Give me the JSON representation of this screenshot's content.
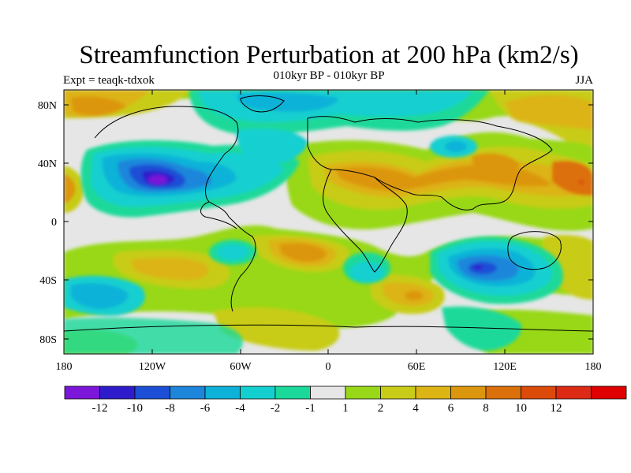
{
  "title": "Streamfunction Perturbation at 200 hPa (km2/s)",
  "subtitle": "010kyr BP - 010kyr BP",
  "left_label": "Expt = teaqk-tdxok",
  "right_label": "JJA",
  "axes": {
    "lat_ticks": [
      "80N",
      "40N",
      "0",
      "40S",
      "80S"
    ],
    "lon_ticks": [
      "180",
      "120W",
      "60W",
      "0",
      "60E",
      "120E",
      "180"
    ]
  },
  "colorbar": {
    "colors": [
      "#7c16d8",
      "#2e1ccc",
      "#1c4fd6",
      "#1e86da",
      "#0eb2d8",
      "#14cfd0",
      "#1ad99a",
      "#e6e6e6",
      "#98d818",
      "#c8cc18",
      "#dcb414",
      "#dc960e",
      "#dc700a",
      "#dc4a0a",
      "#dc2a14",
      "#e00000"
    ],
    "labels": [
      "-12",
      "-10",
      "-8",
      "-6",
      "-4",
      "-2",
      "-1",
      "1",
      "2",
      "4",
      "6",
      "8",
      "10",
      "12"
    ]
  }
}
